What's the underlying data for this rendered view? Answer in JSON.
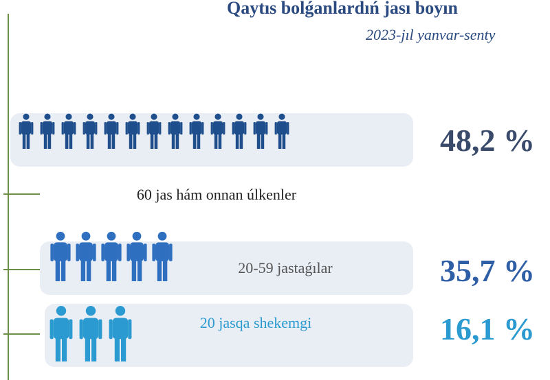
{
  "header": {
    "title": "Qaytıs bolǵanlardıń jası boyın",
    "subtitle": "2023-jıl yanvar-senty"
  },
  "groups": [
    {
      "label": "60 jas hám onnan úlkenler",
      "value": "48,2 %"
    },
    {
      "label": "20-59 jastaǵılar",
      "value": "35,7 %"
    },
    {
      "label": "20 jasqa shekemgi",
      "value": "16,1 %"
    }
  ]
}
